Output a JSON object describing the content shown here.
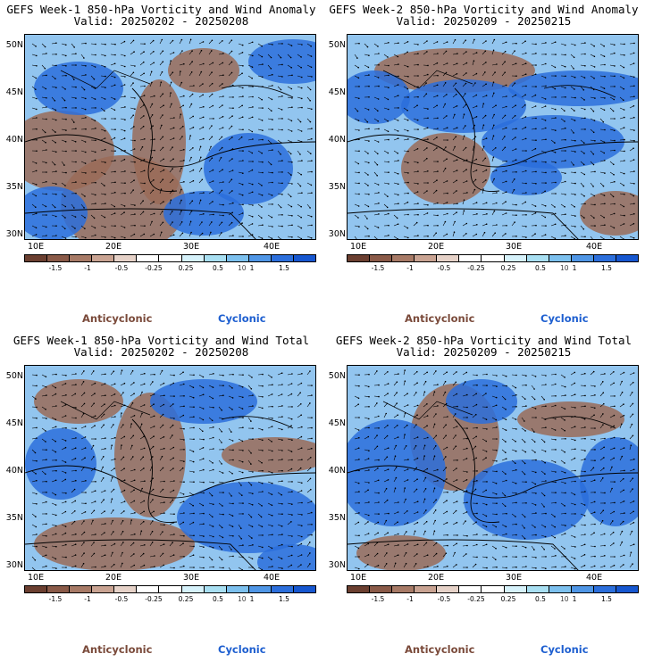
{
  "panels": [
    {
      "title": "GEFS Week-1 850-hPa Vorticity and Wind Anomaly",
      "valid": "Valid: 20250202 - 20250208"
    },
    {
      "title": "GEFS Week-2 850-hPa Vorticity and Wind Anomaly",
      "valid": "Valid: 20250209 - 20250215"
    },
    {
      "title": "GEFS Week-1 850-hPa Vorticity and Wind Total",
      "valid": "Valid: 20250202 - 20250208"
    },
    {
      "title": "GEFS Week-2 850-hPa Vorticity and Wind Total",
      "valid": "Valid: 20250209 - 20250215"
    }
  ],
  "lat_labels": [
    "50N",
    "45N",
    "40N",
    "35N",
    "30N"
  ],
  "lon_labels": [
    "10E",
    "20E",
    "30E",
    "40E"
  ],
  "colorbar": {
    "labels": [
      "-1.5",
      "-1",
      "-0.5",
      "-0.25",
      "0.25",
      "0.5",
      "1",
      "1.5"
    ],
    "unit": "10",
    "colors": [
      "#6b3f30",
      "#8a5a48",
      "#a77a66",
      "#c9a392",
      "#e6d2c8",
      "#ffffff",
      "#ffffff",
      "#d6f2fb",
      "#a8dff2",
      "#7cc0ee",
      "#4f96e6",
      "#2c6fdc",
      "#1657d0"
    ]
  },
  "legend": {
    "anticyclonic": "Anticyclonic",
    "cyclonic": "Cyclonic"
  }
}
